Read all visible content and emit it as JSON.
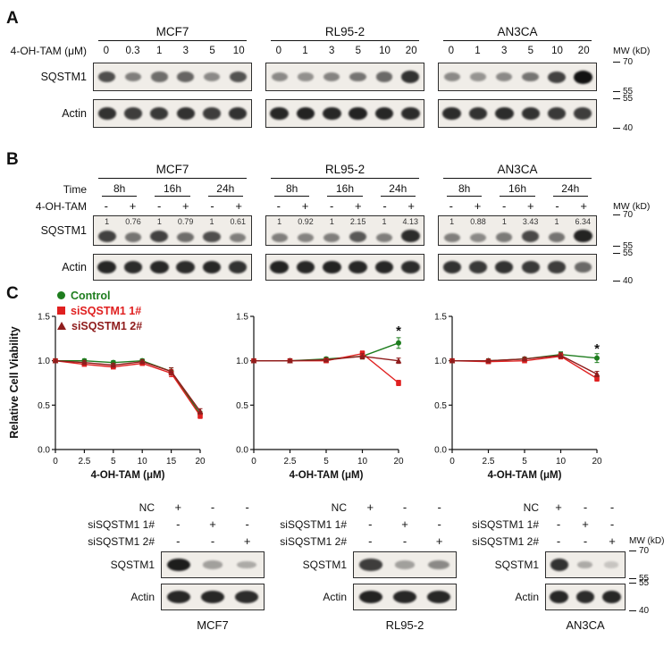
{
  "panelA": {
    "label": "A",
    "dose_label": "4-OH-TAM (μM)",
    "mw_label": "MW (kD)",
    "rows": [
      {
        "label": "SQSTM1",
        "mw_top": "70",
        "mw_bottom": "55"
      },
      {
        "label": "Actin",
        "mw_top": "55",
        "mw_bottom": "40"
      }
    ],
    "groups": [
      {
        "cell_line": "MCF7",
        "doses": [
          "0",
          "0.3",
          "1",
          "3",
          "5",
          "10"
        ],
        "sqstm1_bands": [
          0.72,
          0.5,
          0.58,
          0.62,
          0.45,
          0.7
        ],
        "actin_bands": [
          0.85,
          0.8,
          0.82,
          0.85,
          0.8,
          0.85
        ]
      },
      {
        "cell_line": "RL95-2",
        "doses": [
          "0",
          "1",
          "3",
          "5",
          "10",
          "20"
        ],
        "sqstm1_bands": [
          0.45,
          0.42,
          0.48,
          0.55,
          0.6,
          0.85
        ],
        "actin_bands": [
          0.9,
          0.92,
          0.9,
          0.92,
          0.9,
          0.88
        ]
      },
      {
        "cell_line": "AN3CA",
        "doses": [
          "0",
          "1",
          "3",
          "5",
          "10",
          "20"
        ],
        "sqstm1_bands": [
          0.45,
          0.4,
          0.45,
          0.55,
          0.78,
          1.0
        ],
        "actin_bands": [
          0.88,
          0.85,
          0.88,
          0.85,
          0.82,
          0.8
        ]
      }
    ]
  },
  "panelB": {
    "label": "B",
    "time_label": "Time",
    "treat_label": "4-OH-TAM",
    "mw_label": "MW (kD)",
    "times": [
      "8h",
      "16h",
      "24h"
    ],
    "signs": [
      "-",
      "+",
      "-",
      "+",
      "-",
      "+"
    ],
    "rows": [
      {
        "label": "SQSTM1",
        "mw_top": "70",
        "mw_bottom": "55"
      },
      {
        "label": "Actin",
        "mw_top": "55",
        "mw_bottom": "40"
      }
    ],
    "groups": [
      {
        "cell_line": "MCF7",
        "quant": [
          "1",
          "0.76",
          "1",
          "0.79",
          "1",
          "0.61"
        ],
        "sqstm1_bands": [
          0.78,
          0.55,
          0.78,
          0.58,
          0.72,
          0.5
        ],
        "actin_bands": [
          0.9,
          0.88,
          0.9,
          0.88,
          0.9,
          0.85
        ]
      },
      {
        "cell_line": "RL95-2",
        "quant": [
          "1",
          "0.92",
          "1",
          "2.15",
          "1",
          "4.13"
        ],
        "sqstm1_bands": [
          0.5,
          0.48,
          0.5,
          0.68,
          0.5,
          0.88
        ],
        "actin_bands": [
          0.92,
          0.9,
          0.92,
          0.9,
          0.9,
          0.88
        ]
      },
      {
        "cell_line": "AN3CA",
        "quant": [
          "1",
          "0.88",
          "1",
          "3.43",
          "1",
          "6.34"
        ],
        "sqstm1_bands": [
          0.5,
          0.45,
          0.52,
          0.75,
          0.55,
          0.92
        ],
        "actin_bands": [
          0.85,
          0.82,
          0.85,
          0.82,
          0.8,
          0.6
        ]
      }
    ]
  },
  "panelC": {
    "label": "C",
    "y_axis_title": "Relative Cell Viability",
    "legend": [
      {
        "label": "Control",
        "marker": "circle",
        "color": "#1e7d1e"
      },
      {
        "label": "siSQSTM1 1#",
        "marker": "square",
        "color": "#e02020"
      },
      {
        "label": "siSQSTM1 2#",
        "marker": "triangle",
        "color": "#8f1d1d"
      }
    ],
    "tables": {
      "row_labels": [
        "NC",
        "siSQSTM1 1#",
        "siSQSTM1 2#"
      ],
      "blot_labels": [
        "SQSTM1",
        "Actin"
      ],
      "mw_label": "MW (kD)",
      "mw_rows": [
        {
          "top": "70",
          "bottom": "55"
        },
        {
          "top": "55",
          "bottom": "40"
        }
      ],
      "groups": [
        {
          "cell_line": "MCF7",
          "signs": [
            [
              "+",
              "-",
              "-"
            ],
            [
              "-",
              "+",
              "-"
            ],
            [
              "-",
              "-",
              "+"
            ]
          ],
          "sqstm1_bands": [
            0.95,
            0.35,
            0.3
          ],
          "actin_bands": [
            0.9,
            0.9,
            0.88
          ]
        },
        {
          "cell_line": "RL95-2",
          "signs": [
            [
              "+",
              "-",
              "-"
            ],
            [
              "-",
              "+",
              "-"
            ],
            [
              "-",
              "-",
              "+"
            ]
          ],
          "sqstm1_bands": [
            0.8,
            0.35,
            0.45
          ],
          "actin_bands": [
            0.92,
            0.9,
            0.9
          ]
        },
        {
          "cell_line": "AN3CA",
          "signs": [
            [
              "+",
              "-",
              "-"
            ],
            [
              "-",
              "+",
              "-"
            ],
            [
              "-",
              "-",
              "+"
            ]
          ],
          "sqstm1_bands": [
            0.85,
            0.3,
            0.15
          ],
          "actin_bands": [
            0.9,
            0.88,
            0.9
          ]
        }
      ]
    }
  },
  "chart_data": [
    {
      "type": "line",
      "cell_line": "MCF7",
      "xlabel": "4-OH-TAM (μM)",
      "ylabel": "Relative Cell Viability",
      "x_tick_labels": [
        "0",
        "2.5",
        "5",
        "10",
        "15",
        "20"
      ],
      "ylim": [
        0,
        1.5
      ],
      "yticks": [
        0,
        0.5,
        1.0,
        1.5
      ],
      "grid": false,
      "legend_position": "top-left-outside",
      "series": [
        {
          "name": "Control",
          "marker": "circle",
          "color": "#1e7d1e",
          "values": [
            1.0,
            1.0,
            0.98,
            1.0,
            0.88,
            0.4
          ],
          "err": [
            0.02,
            0.02,
            0.02,
            0.02,
            0.04,
            0.03
          ]
        },
        {
          "name": "siSQSTM1 1#",
          "marker": "square",
          "color": "#e02020",
          "values": [
            1.0,
            0.96,
            0.93,
            0.97,
            0.86,
            0.38
          ],
          "err": [
            0.02,
            0.02,
            0.02,
            0.02,
            0.04,
            0.03
          ]
        },
        {
          "name": "siSQSTM1 2#",
          "marker": "triangle",
          "color": "#8f1d1d",
          "values": [
            1.0,
            0.98,
            0.95,
            0.99,
            0.88,
            0.43
          ],
          "err": [
            0.02,
            0.02,
            0.02,
            0.02,
            0.04,
            0.03
          ]
        }
      ],
      "annotation": null
    },
    {
      "type": "line",
      "cell_line": "RL95-2",
      "xlabel": "4-OH-TAM (μM)",
      "ylabel": "Relative Cell Viability",
      "x_tick_labels": [
        "0",
        "2.5",
        "5",
        "10",
        "20"
      ],
      "ylim": [
        0,
        1.5
      ],
      "yticks": [
        0,
        0.5,
        1.0,
        1.5
      ],
      "grid": false,
      "series": [
        {
          "name": "Control",
          "marker": "circle",
          "color": "#1e7d1e",
          "values": [
            1.0,
            1.0,
            1.02,
            1.05,
            1.2
          ],
          "err": [
            0.02,
            0.02,
            0.02,
            0.03,
            0.06
          ]
        },
        {
          "name": "siSQSTM1 1#",
          "marker": "square",
          "color": "#e02020",
          "values": [
            1.0,
            1.0,
            1.0,
            1.08,
            0.75
          ],
          "err": [
            0.02,
            0.02,
            0.02,
            0.03,
            0.03
          ]
        },
        {
          "name": "siSQSTM1 2#",
          "marker": "triangle",
          "color": "#8f1d1d",
          "values": [
            1.0,
            1.0,
            1.01,
            1.05,
            1.0
          ],
          "err": [
            0.02,
            0.02,
            0.02,
            0.03,
            0.03
          ]
        }
      ],
      "annotation": {
        "text": "*",
        "x_index": 4,
        "y": 1.33
      }
    },
    {
      "type": "line",
      "cell_line": "AN3CA",
      "xlabel": "4-OH-TAM (μM)",
      "ylabel": "Relative Cell Viability",
      "x_tick_labels": [
        "0",
        "2.5",
        "5",
        "10",
        "20"
      ],
      "ylim": [
        0,
        1.5
      ],
      "yticks": [
        0,
        0.5,
        1.0,
        1.5
      ],
      "grid": false,
      "series": [
        {
          "name": "Control",
          "marker": "circle",
          "color": "#1e7d1e",
          "values": [
            1.0,
            1.0,
            1.02,
            1.07,
            1.03
          ],
          "err": [
            0.02,
            0.02,
            0.02,
            0.03,
            0.05
          ]
        },
        {
          "name": "siSQSTM1 1#",
          "marker": "square",
          "color": "#e02020",
          "values": [
            1.0,
            0.99,
            1.0,
            1.05,
            0.8
          ],
          "err": [
            0.02,
            0.02,
            0.02,
            0.03,
            0.03
          ]
        },
        {
          "name": "siSQSTM1 2#",
          "marker": "triangle",
          "color": "#8f1d1d",
          "values": [
            1.0,
            1.0,
            1.02,
            1.06,
            0.85
          ],
          "err": [
            0.02,
            0.02,
            0.02,
            0.03,
            0.03
          ]
        }
      ],
      "annotation": {
        "text": "*",
        "x_index": 4,
        "y": 1.13
      }
    }
  ]
}
